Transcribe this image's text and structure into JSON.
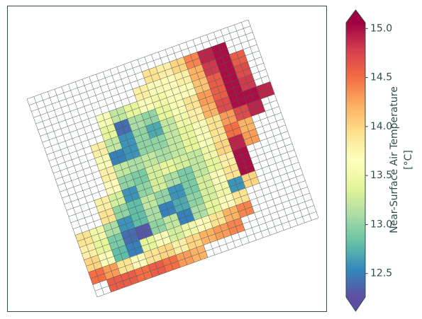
{
  "chart_data": {
    "type": "gridmap",
    "colorbar_label": [
      "Near-Surface Air Temperature",
      "[°C]"
    ],
    "clim": [
      12.26,
      15.06
    ],
    "colormap": [
      "#5e4fa2",
      "#3288bd",
      "#66c2a5",
      "#abdda4",
      "#e6f598",
      "#ffffbf",
      "#fee08b",
      "#fdae61",
      "#f46d43",
      "#d53e4f",
      "#9e0142"
    ],
    "ticks": [
      {
        "value": 12.5,
        "label": "12.5"
      },
      {
        "value": 13,
        "label": "13.0"
      },
      {
        "value": 13.5,
        "label": "13.5"
      },
      {
        "value": 14,
        "label": "14.0"
      },
      {
        "value": 14.5,
        "label": "14.5"
      },
      {
        "value": 15,
        "label": "15.0"
      }
    ],
    "values": [
      [
        null,
        null,
        null,
        null,
        null,
        null,
        null,
        null,
        null,
        null,
        null,
        null,
        null,
        null,
        null,
        null
      ],
      [
        null,
        null,
        null,
        null,
        null,
        null,
        null,
        null,
        13.9,
        13.8,
        14.0,
        14.4,
        14.9,
        15.0,
        null,
        null
      ],
      [
        null,
        null,
        null,
        null,
        null,
        null,
        null,
        13.8,
        13.6,
        13.7,
        13.8,
        14.2,
        14.8,
        15.0,
        14.6,
        null
      ],
      [
        null,
        null,
        null,
        null,
        13.6,
        13.2,
        13.4,
        13.6,
        13.5,
        13.6,
        13.7,
        14.1,
        14.6,
        15.0,
        14.7,
        null
      ],
      [
        null,
        null,
        null,
        null,
        13.4,
        12.4,
        13.1,
        13.0,
        13.4,
        13.6,
        13.9,
        14.3,
        14.6,
        15.0,
        14.8,
        null
      ],
      [
        null,
        null,
        null,
        13.8,
        13.2,
        12.6,
        13.0,
        12.7,
        13.2,
        13.5,
        13.8,
        14.2,
        14.7,
        15.0,
        15.0,
        14.9
      ],
      [
        null,
        null,
        null,
        13.6,
        12.5,
        12.6,
        13.0,
        13.0,
        13.2,
        13.4,
        13.6,
        13.9,
        14.3,
        14.7,
        14.9,
        null
      ],
      [
        null,
        null,
        null,
        13.8,
        13.2,
        13.1,
        13.2,
        13.1,
        13.2,
        13.4,
        13.6,
        13.9,
        14.5,
        14.2,
        null,
        null
      ],
      [
        null,
        null,
        null,
        13.7,
        13.0,
        12.9,
        13.3,
        13.4,
        13.3,
        13.2,
        13.5,
        14.0,
        14.9,
        14.3,
        null,
        null
      ],
      [
        null,
        null,
        13.8,
        13.3,
        12.6,
        13.0,
        13.3,
        13.1,
        12.9,
        13.2,
        13.4,
        13.8,
        15.0,
        null,
        null,
        null
      ],
      [
        null,
        null,
        13.9,
        13.0,
        12.8,
        13.2,
        13.0,
        12.6,
        12.9,
        13.3,
        13.6,
        13.9,
        15.0,
        null,
        null,
        null
      ],
      [
        13.9,
        13.5,
        13.1,
        12.6,
        12.8,
        13.1,
        12.5,
        12.7,
        13.0,
        13.3,
        13.5,
        12.6,
        14.0,
        null,
        null,
        null
      ],
      [
        13.8,
        13.4,
        12.9,
        12.4,
        12.3,
        13.0,
        13.2,
        12.5,
        13.1,
        13.4,
        13.7,
        13.9,
        null,
        null,
        null,
        null
      ],
      [
        14.0,
        13.6,
        12.8,
        12.5,
        13.4,
        13.6,
        13.3,
        13.5,
        13.7,
        13.9,
        14.2,
        14.4,
        null,
        null,
        null,
        null
      ],
      [
        14.5,
        14.3,
        13.9,
        13.7,
        13.9,
        14.0,
        13.8,
        14.0,
        14.2,
        14.3,
        14.4,
        null,
        null,
        null,
        null,
        null
      ],
      [
        null,
        14.6,
        14.6,
        14.5,
        14.6,
        14.5,
        14.3,
        14.2,
        null,
        null,
        null,
        null,
        null,
        null,
        null,
        null
      ]
    ]
  }
}
